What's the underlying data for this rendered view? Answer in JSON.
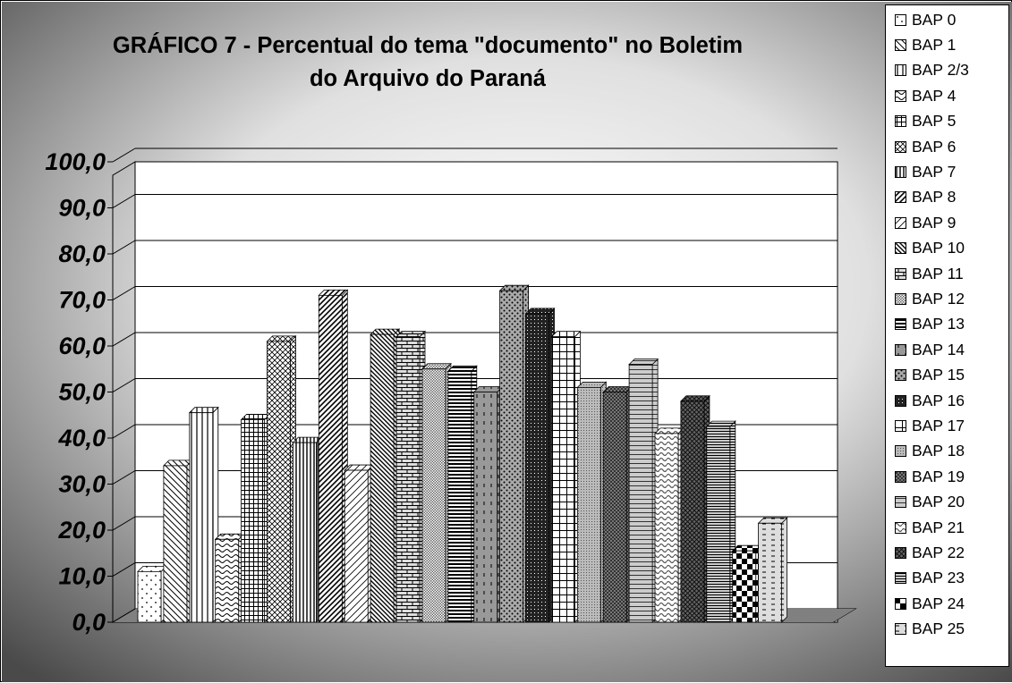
{
  "chart_data": {
    "type": "bar",
    "title": "GRÁFICO 7 - Percentual do tema \"documento\"  no Boletim do Arquivo do Paraná",
    "title_lines": [
      "GRÁFICO 7 - Percentual do tema \"documento\"  no Boletim",
      "do Arquivo do Paraná"
    ],
    "xlabel": "",
    "ylabel": "",
    "ylim": [
      0,
      100
    ],
    "yticks": [
      0,
      10,
      20,
      30,
      40,
      50,
      60,
      70,
      80,
      90,
      100
    ],
    "ytick_labels": [
      "0,0",
      "10,0",
      "20,0",
      "30,0",
      "40,0",
      "50,0",
      "60,0",
      "70,0",
      "80,0",
      "90,0",
      "100,0"
    ],
    "grid": true,
    "legend_position": "right",
    "series": [
      {
        "name": "BAP 0",
        "value": 11
      },
      {
        "name": "BAP 1",
        "value": 34
      },
      {
        "name": "BAP 2/3",
        "value": 45.5
      },
      {
        "name": "BAP 4",
        "value": 18
      },
      {
        "name": "BAP 5",
        "value": 44
      },
      {
        "name": "BAP 6",
        "value": 61
      },
      {
        "name": "BAP 7",
        "value": 39
      },
      {
        "name": "BAP 8",
        "value": 71
      },
      {
        "name": "BAP 9",
        "value": 33
      },
      {
        "name": "BAP 10",
        "value": 62.5
      },
      {
        "name": "BAP 11",
        "value": 62
      },
      {
        "name": "BAP 12",
        "value": 55
      },
      {
        "name": "BAP 13",
        "value": 54.5
      },
      {
        "name": "BAP 14",
        "value": 50
      },
      {
        "name": "BAP 15",
        "value": 72
      },
      {
        "name": "BAP 16",
        "value": 67
      },
      {
        "name": "BAP 17",
        "value": 62
      },
      {
        "name": "BAP 18",
        "value": 51
      },
      {
        "name": "BAP 19",
        "value": 50
      },
      {
        "name": "BAP 20",
        "value": 56
      },
      {
        "name": "BAP 21",
        "value": 41
      },
      {
        "name": "BAP 22",
        "value": 48
      },
      {
        "name": "BAP 23",
        "value": 42.5
      },
      {
        "name": "BAP 24",
        "value": 15.5
      },
      {
        "name": "BAP 25",
        "value": 21.5
      }
    ]
  }
}
